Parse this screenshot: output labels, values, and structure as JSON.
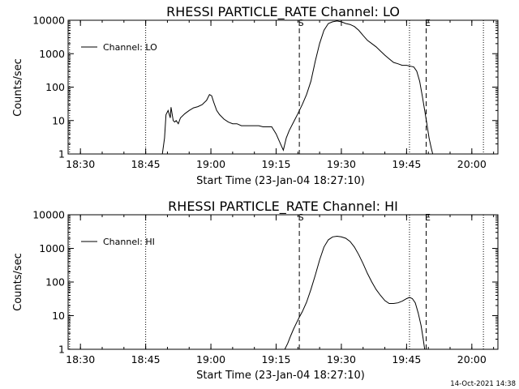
{
  "chart_data": [
    {
      "type": "line",
      "title": "RHESSI PARTICLE_RATE Channel: LO",
      "xlabel": "Start Time (23-Jan-04 18:27:10)",
      "ylabel": "Counts/sec",
      "y_scale": "log",
      "ylim": [
        1,
        10000
      ],
      "xlim": [
        "18:27:10",
        "20:06:00"
      ],
      "x_ticks": [
        "18:30",
        "18:45",
        "19:00",
        "19:15",
        "19:30",
        "19:45",
        "20:00"
      ],
      "y_ticks": [
        "1",
        "10",
        "100",
        "1000",
        "10000"
      ],
      "legend": {
        "position": "top-left",
        "entries": [
          "Channel: LO"
        ]
      },
      "markers": [
        {
          "label": "S",
          "time": "19:20:20",
          "style": "dashed"
        },
        {
          "label": "E",
          "time": "19:49:30",
          "style": "dashed"
        }
      ],
      "dotted_lines": [
        "18:27:30",
        "18:45:00",
        "19:45:40",
        "20:02:40"
      ],
      "series": [
        {
          "name": "Channel: LO",
          "x": [
            "18:48:50",
            "18:49:20",
            "18:49:40",
            "18:50:10",
            "18:50:40",
            "18:50:50",
            "18:51:20",
            "18:51:40",
            "18:52:00",
            "18:52:30",
            "18:53:00",
            "18:54:00",
            "18:55:00",
            "18:56:00",
            "18:57:00",
            "18:58:00",
            "18:59:00",
            "18:59:40",
            "19:00:10",
            "19:00:40",
            "19:01:20",
            "19:02:00",
            "19:03:00",
            "19:04:00",
            "19:05:00",
            "19:06:00",
            "19:07:00",
            "19:08:00",
            "19:09:00",
            "19:10:00",
            "19:11:00",
            "19:12:00",
            "19:13:00",
            "19:14:00",
            "19:15:00",
            "19:16:00",
            "19:16:40",
            "19:17:20",
            "19:18:00",
            "19:19:00",
            "19:20:00",
            "19:21:00",
            "19:22:00",
            "19:23:00",
            "19:24:00",
            "19:25:00",
            "19:26:00",
            "19:27:00",
            "19:28:00",
            "19:29:00",
            "19:30:00",
            "19:31:00",
            "19:32:00",
            "19:33:00",
            "19:34:00",
            "19:35:00",
            "19:36:00",
            "19:37:00",
            "19:38:00",
            "19:39:00",
            "19:40:00",
            "19:41:00",
            "19:42:00",
            "19:43:00",
            "19:44:00",
            "19:45:00",
            "19:46:00",
            "19:46:40",
            "19:47:20",
            "19:48:00",
            "19:48:40",
            "19:49:10",
            "19:49:40",
            "19:50:10",
            "19:50:40",
            "19:51:00"
          ],
          "y": [
            1,
            3,
            15,
            20,
            12,
            25,
            10,
            9,
            10,
            8,
            12,
            16,
            20,
            24,
            26,
            30,
            40,
            60,
            55,
            35,
            20,
            15,
            11,
            9,
            8,
            8,
            7,
            7,
            7,
            7,
            7,
            6.5,
            6.5,
            6.5,
            4,
            2,
            1.3,
            3,
            5,
            9,
            16,
            30,
            60,
            150,
            600,
            2000,
            5000,
            8000,
            9000,
            9500,
            9000,
            8000,
            7500,
            6500,
            5000,
            3500,
            2500,
            2000,
            1600,
            1200,
            900,
            700,
            550,
            500,
            450,
            450,
            420,
            400,
            300,
            150,
            50,
            20,
            8,
            3,
            1.5,
            1
          ]
        }
      ]
    },
    {
      "type": "line",
      "title": "RHESSI PARTICLE_RATE Channel: HI",
      "xlabel": "Start Time (23-Jan-04 18:27:10)",
      "ylabel": "Counts/sec",
      "y_scale": "log",
      "ylim": [
        1,
        10000
      ],
      "xlim": [
        "18:27:10",
        "20:06:00"
      ],
      "x_ticks": [
        "18:30",
        "18:45",
        "19:00",
        "19:15",
        "19:30",
        "19:45",
        "20:00"
      ],
      "y_ticks": [
        "1",
        "10",
        "100",
        "1000",
        "10000"
      ],
      "legend": {
        "position": "top-left",
        "entries": [
          "Channel: HI"
        ]
      },
      "markers": [
        {
          "label": "S",
          "time": "19:20:20",
          "style": "dashed"
        },
        {
          "label": "E",
          "time": "19:49:30",
          "style": "dashed"
        }
      ],
      "dotted_lines": [
        "18:27:30",
        "18:45:00",
        "19:45:40",
        "20:02:40"
      ],
      "series": [
        {
          "name": "Channel: HI",
          "x": [
            "19:17:00",
            "19:17:40",
            "19:18:20",
            "19:19:00",
            "19:19:40",
            "19:20:20",
            "19:21:00",
            "19:22:00",
            "19:23:00",
            "19:24:00",
            "19:25:00",
            "19:26:00",
            "19:27:00",
            "19:28:00",
            "19:29:00",
            "19:30:00",
            "19:31:00",
            "19:32:00",
            "19:33:00",
            "19:34:00",
            "19:35:00",
            "19:36:00",
            "19:37:00",
            "19:38:00",
            "19:39:00",
            "19:40:00",
            "19:41:00",
            "19:42:00",
            "19:43:00",
            "19:44:00",
            "19:45:00",
            "19:45:40",
            "19:46:20",
            "19:47:00",
            "19:47:40",
            "19:48:20",
            "19:48:50",
            "19:49:10"
          ],
          "y": [
            1,
            1.5,
            2.5,
            4,
            6,
            9,
            13,
            25,
            60,
            160,
            450,
            1100,
            1800,
            2200,
            2300,
            2200,
            2000,
            1600,
            1100,
            650,
            350,
            180,
            100,
            60,
            40,
            28,
            23,
            23,
            24,
            27,
            32,
            35,
            32,
            24,
            12,
            5,
            2,
            1
          ]
        }
      ]
    }
  ],
  "timestamp": "14-Oct-2021 14:38"
}
